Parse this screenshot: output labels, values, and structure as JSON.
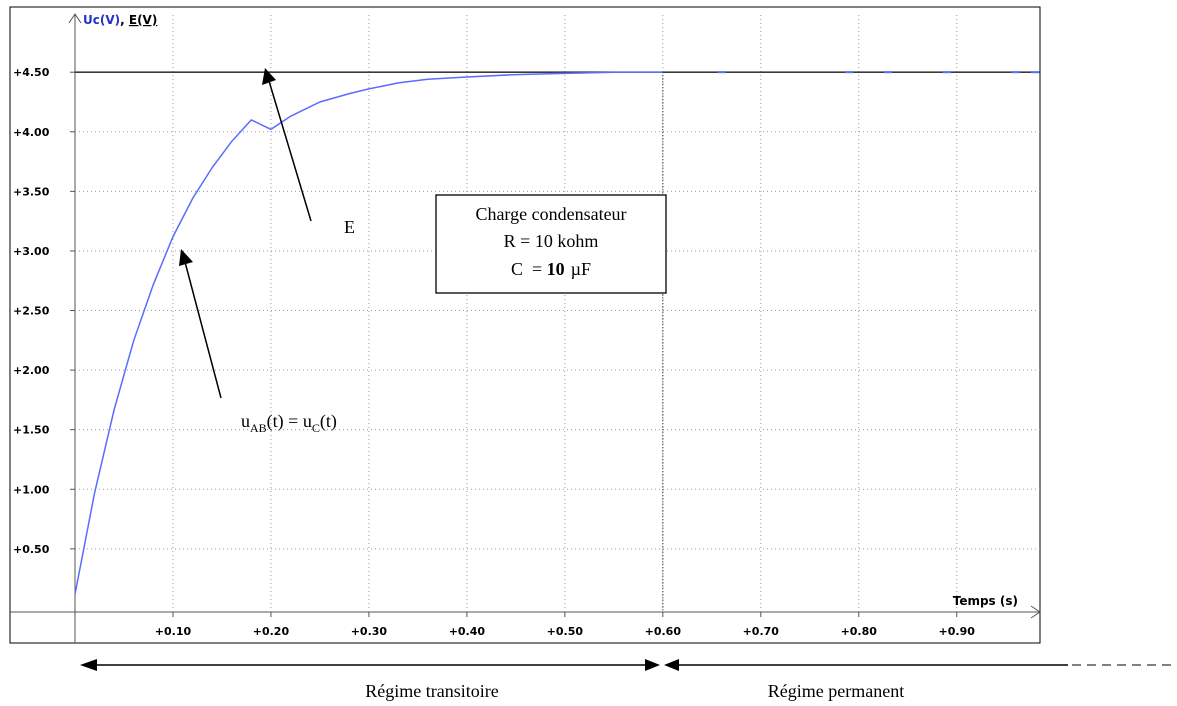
{
  "chart_data": {
    "type": "line",
    "x_axis_title": "Temps (s)",
    "y_axis_title": {
      "series1": "Uc(V)",
      "separator": ", ",
      "series2": "E(V)"
    },
    "xlim": [
      0,
      0.985
    ],
    "ylim": [
      -0.03,
      4.98
    ],
    "x_ticks": [
      "+0.10",
      "+0.20",
      "+0.30",
      "+0.40",
      "+0.50",
      "+0.60",
      "+0.70",
      "+0.80",
      "+0.90"
    ],
    "x_tick_values": [
      0.1,
      0.2,
      0.3,
      0.4,
      0.5,
      0.6,
      0.7,
      0.8,
      0.9
    ],
    "y_ticks": [
      "+0.50",
      "+1.00",
      "+1.50",
      "+2.00",
      "+2.50",
      "+3.00",
      "+3.50",
      "+4.00",
      "+4.50"
    ],
    "y_tick_values": [
      0.5,
      1.0,
      1.5,
      2.0,
      2.5,
      3.0,
      3.5,
      4.0,
      4.5
    ],
    "grid": true,
    "series": [
      {
        "name": "Uc(V)",
        "color": "#5a6cff",
        "x": [
          0.0,
          0.02,
          0.04,
          0.06,
          0.08,
          0.1,
          0.12,
          0.14,
          0.16,
          0.18,
          0.2,
          0.22,
          0.25,
          0.28,
          0.3,
          0.33,
          0.36,
          0.4,
          0.45,
          0.5,
          0.55,
          0.6
        ],
        "y": [
          0.12,
          0.97,
          1.67,
          2.25,
          2.72,
          3.12,
          3.44,
          3.7,
          3.92,
          4.1,
          4.02,
          4.13,
          4.25,
          4.32,
          4.36,
          4.41,
          4.44,
          4.46,
          4.48,
          4.49,
          4.5,
          4.5
        ]
      },
      {
        "name": "E(V)",
        "color": "#000000",
        "x": [
          0.0,
          0.985
        ],
        "y": [
          4.5,
          4.5
        ]
      }
    ],
    "annotations": {
      "box_line1": "Charge condensateur",
      "box_line2": "R = 10 kohm",
      "box_line3_prefix": "C  = ",
      "box_line3_value": "10",
      "box_line3_unit": "µF",
      "label_E": "E",
      "label_uab_main": "u",
      "label_uab_sub1": "AB",
      "label_uab_mid": "(t) = u",
      "label_uab_sub2": "C",
      "label_uab_end": "(t)",
      "regime_transitoire": "Régime transitoire",
      "regime_permanent": "Régime permanent"
    },
    "colors": {
      "curve": "#5a6cff",
      "e_line": "#3a3a3a",
      "grid": "#9a9a9a",
      "y_title": "#2233cc"
    }
  }
}
